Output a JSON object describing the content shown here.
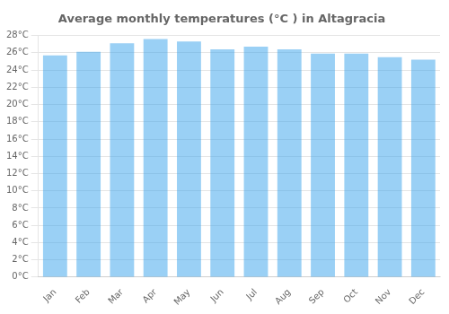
{
  "chart_data": {
    "type": "bar",
    "title": "Average monthly temperatures (°C ) in Altagracia",
    "categories": [
      "Jan",
      "Feb",
      "Mar",
      "Apr",
      "May",
      "Jun",
      "Jul",
      "Aug",
      "Sep",
      "Oct",
      "Nov",
      "Dec"
    ],
    "values": [
      25.7,
      26.1,
      27.1,
      27.6,
      27.3,
      26.4,
      26.7,
      26.4,
      25.9,
      25.9,
      25.5,
      25.2
    ],
    "ylim": [
      0,
      28
    ],
    "yticks": [
      {
        "value": 0,
        "label": "0°C"
      },
      {
        "value": 2,
        "label": "2°C"
      },
      {
        "value": 4,
        "label": "4°C"
      },
      {
        "value": 6,
        "label": "6°C"
      },
      {
        "value": 8,
        "label": "8°C"
      },
      {
        "value": 10,
        "label": "10°C"
      },
      {
        "value": 12,
        "label": "12°C"
      },
      {
        "value": 14,
        "label": "14°C"
      },
      {
        "value": 16,
        "label": "16°C"
      },
      {
        "value": 18,
        "label": "18°C"
      },
      {
        "value": 20,
        "label": "20°C"
      },
      {
        "value": 22,
        "label": "22°C"
      },
      {
        "value": 24,
        "label": "24°C"
      },
      {
        "value": 26,
        "label": "26°C"
      },
      {
        "value": 28,
        "label": "28°C"
      }
    ],
    "grid": true
  }
}
